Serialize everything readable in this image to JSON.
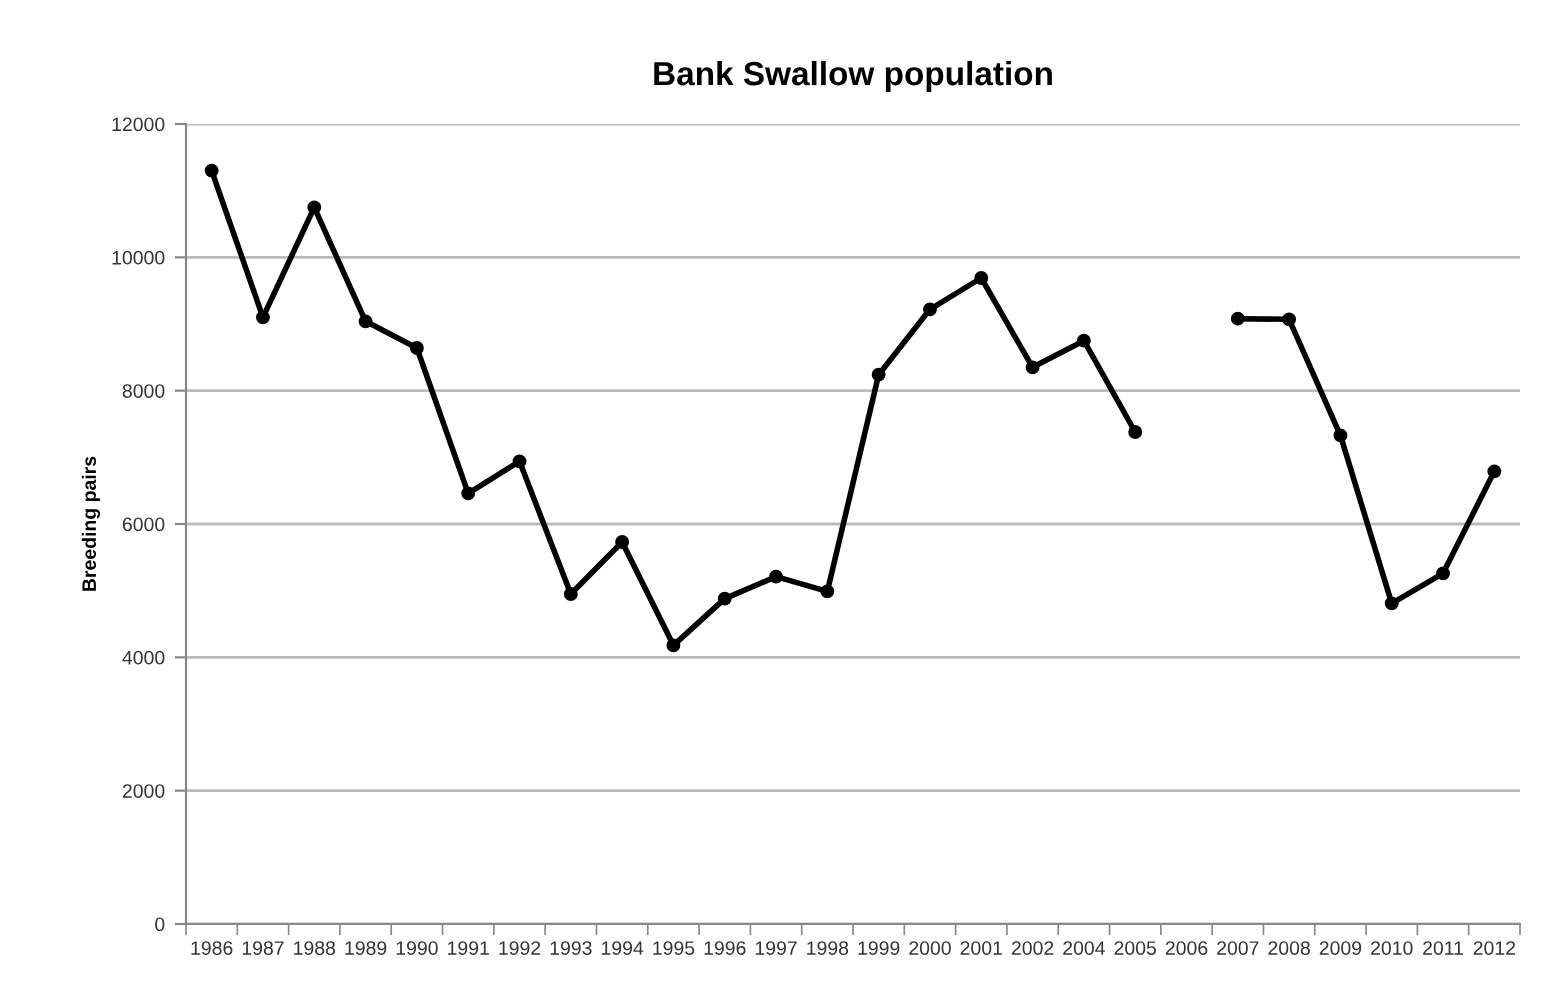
{
  "chart_data": {
    "type": "line",
    "title": "Bank Swallow population",
    "ylabel": "Breeding pairs",
    "categories": [
      "1986",
      "1987",
      "1988",
      "1989",
      "1990",
      "1991",
      "1992",
      "1993",
      "1994",
      "1995",
      "1996",
      "1997",
      "1998",
      "1999",
      "2000",
      "2001",
      "2002",
      "2004",
      "2005",
      "2006",
      "2007",
      "2008",
      "2009",
      "2010",
      "2011",
      "2012"
    ],
    "series": [
      {
        "color": "#000000",
        "values": [
          11300,
          9100,
          10750,
          9040,
          8640,
          6460,
          6940,
          4950,
          5730,
          4180,
          4880,
          5210,
          4990,
          8240,
          9220,
          9690,
          8350,
          8750,
          7380,
          null,
          9080,
          9070,
          7330,
          4810,
          5260,
          6790
        ]
      }
    ],
    "ylim": [
      0,
      12000
    ],
    "yticks": [
      0,
      2000,
      4000,
      6000,
      8000,
      10000,
      12000
    ],
    "grid": "y",
    "marker": "circle",
    "line_style": "solid",
    "legend": false
  }
}
